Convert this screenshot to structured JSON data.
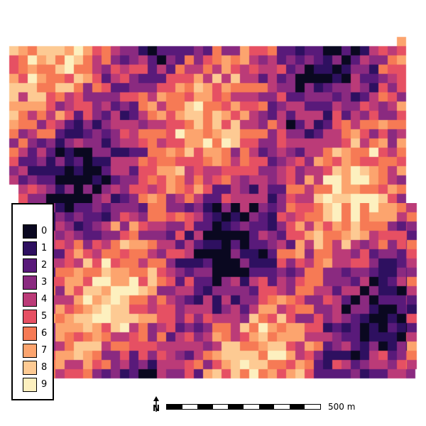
{
  "map": {
    "grid_seed": 7,
    "palette": [
      "#0a0820",
      "#2e1060",
      "#591a7a",
      "#8a2a80",
      "#bb3b78",
      "#e65063",
      "#f67a55",
      "#fca46e",
      "#fdca93",
      "#fdf0bf"
    ]
  },
  "legend": {
    "entries": [
      {
        "label": "0",
        "color": "#0a0820"
      },
      {
        "label": "1",
        "color": "#2e1060"
      },
      {
        "label": "2",
        "color": "#591a7a"
      },
      {
        "label": "3",
        "color": "#8a2a80"
      },
      {
        "label": "4",
        "color": "#bb3b78"
      },
      {
        "label": "5",
        "color": "#e65063"
      },
      {
        "label": "6",
        "color": "#f67a55"
      },
      {
        "label": "7",
        "color": "#fca46e"
      },
      {
        "label": "8",
        "color": "#fdca93"
      },
      {
        "label": "9",
        "color": "#fdf0bf"
      }
    ]
  },
  "scale": {
    "label": "500 m",
    "segments": 10
  },
  "north": {
    "label": "N",
    "icon": "north-arrow-icon"
  }
}
